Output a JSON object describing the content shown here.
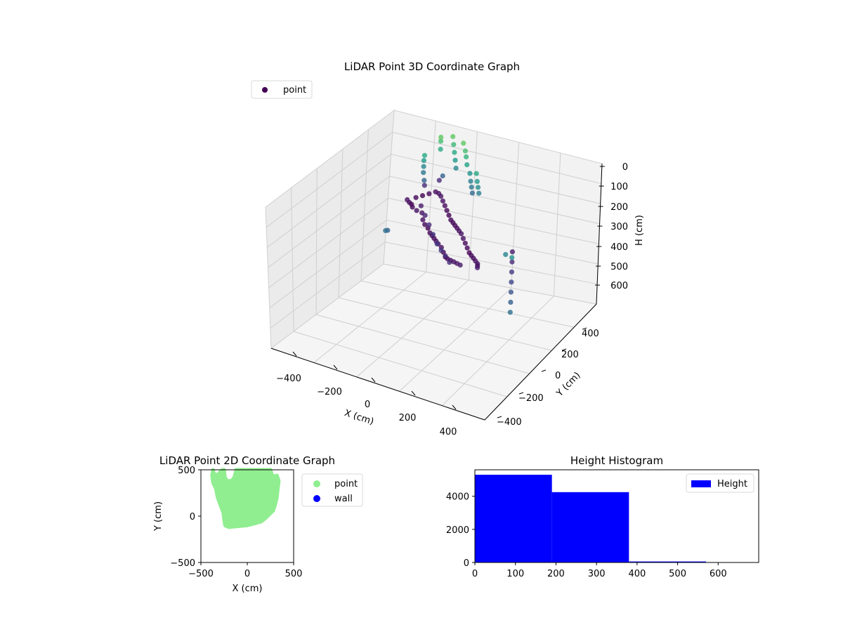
{
  "chart_data": [
    {
      "type": "scatter",
      "projection": "3d",
      "title": "LiDAR Point 3D Coordinate Graph",
      "xlabel": "X (cm)",
      "ylabel": "Y (cm)",
      "zlabel": "H (cm)",
      "xticks": [
        "−400",
        "−200",
        "0",
        "200",
        "400"
      ],
      "yticks": [
        "−400",
        "−200",
        "0",
        "200",
        "400"
      ],
      "zticks": [
        "0",
        "100",
        "200",
        "300",
        "400",
        "500",
        "600"
      ],
      "zaxis_inverted": true,
      "grid": true,
      "legend": {
        "position": "top-left",
        "entries": [
          {
            "label": "point",
            "color": "#440154"
          }
        ]
      },
      "colormap": "viridis",
      "series": [
        {
          "name": "point",
          "points": [
            [
              -200,
              150,
              250
            ],
            [
              -180,
              120,
              240
            ],
            [
              -150,
              100,
              235
            ],
            [
              -120,
              90,
              230
            ],
            [
              -100,
              60,
              240
            ],
            [
              -80,
              40,
              245
            ],
            [
              -60,
              30,
              250
            ],
            [
              -40,
              10,
              255
            ],
            [
              -20,
              -10,
              250
            ],
            [
              0,
              -30,
              245
            ],
            [
              20,
              -50,
              240
            ],
            [
              40,
              -70,
              235
            ],
            [
              60,
              -80,
              240
            ],
            [
              80,
              -100,
              245
            ],
            [
              100,
              -120,
              250
            ],
            [
              120,
              -140,
              240
            ],
            [
              140,
              -150,
              235
            ],
            [
              160,
              -160,
              230
            ],
            [
              180,
              -170,
              225
            ],
            [
              200,
              -180,
              220
            ],
            [
              -220,
              170,
              260
            ],
            [
              -240,
              190,
              265
            ],
            [
              -210,
              210,
              255
            ],
            [
              -190,
              230,
              250
            ],
            [
              -170,
              250,
              245
            ],
            [
              -150,
              270,
              240
            ],
            [
              -130,
              260,
              235
            ],
            [
              -110,
              240,
              230
            ],
            [
              -90,
              220,
              235
            ],
            [
              -70,
              200,
              240
            ],
            [
              -50,
              180,
              245
            ],
            [
              -30,
              160,
              250
            ],
            [
              -10,
              140,
              255
            ],
            [
              10,
              120,
              250
            ],
            [
              30,
              100,
              245
            ],
            [
              50,
              80,
              240
            ],
            [
              70,
              60,
              235
            ],
            [
              90,
              40,
              230
            ],
            [
              110,
              20,
              235
            ],
            [
              130,
              0,
              240
            ],
            [
              150,
              -20,
              245
            ],
            [
              170,
              -40,
              250
            ],
            [
              190,
              -60,
              245
            ],
            [
              210,
              -80,
              240
            ],
            [
              230,
              -100,
              235
            ],
            [
              250,
              -120,
              230
            ],
            [
              260,
              -140,
              225
            ],
            [
              270,
              -160,
              220
            ],
            [
              -100,
              120,
              300
            ],
            [
              -60,
              80,
              310
            ],
            [
              -20,
              40,
              320
            ],
            [
              20,
              0,
              315
            ],
            [
              60,
              -40,
              305
            ],
            [
              100,
              -80,
              300
            ],
            [
              -140,
              160,
              290
            ],
            [
              -180,
              200,
              280
            ],
            [
              -200,
              250,
              150
            ],
            [
              -200,
              250,
              120
            ],
            [
              -200,
              250,
              90
            ],
            [
              -195,
              245,
              60
            ],
            [
              -190,
              240,
              180
            ],
            [
              -185,
              235,
              200
            ],
            [
              -150,
              300,
              200
            ],
            [
              -140,
              310,
              180
            ],
            [
              -160,
              320,
              60
            ],
            [
              -160,
              320,
              20
            ],
            [
              -160,
              320,
              0
            ],
            [
              -120,
              350,
              0
            ],
            [
              -110,
              340,
              30
            ],
            [
              -100,
              330,
              60
            ],
            [
              -90,
              320,
              90
            ],
            [
              -80,
              310,
              120
            ],
            [
              -60,
              330,
              0
            ],
            [
              -40,
              310,
              20
            ],
            [
              -30,
              300,
              40
            ],
            [
              -20,
              290,
              70
            ],
            [
              0,
              280,
              100
            ],
            [
              10,
              270,
              130
            ],
            [
              20,
              260,
              150
            ],
            [
              30,
              250,
              170
            ],
            [
              50,
              240,
              60
            ],
            [
              60,
              230,
              90
            ],
            [
              70,
              220,
              110
            ],
            [
              80,
              210,
              130
            ],
            [
              300,
              100,
              280
            ],
            [
              320,
              60,
              300
            ],
            [
              340,
              20,
              320
            ],
            [
              360,
              -20,
              340
            ],
            [
              380,
              -60,
              360
            ],
            [
              400,
              -100,
              380
            ],
            [
              420,
              -140,
              400
            ],
            [
              -300,
              120,
              400
            ],
            [
              -280,
              100,
              380
            ],
            [
              200,
              300,
              460
            ],
            [
              180,
              280,
              440
            ]
          ]
        }
      ]
    },
    {
      "type": "scatter",
      "title": "LiDAR Point 2D Coordinate Graph",
      "xlabel": "X (cm)",
      "ylabel": "Y (cm)",
      "xlim": [
        -500,
        500
      ],
      "ylim": [
        -500,
        500
      ],
      "xticks": [
        "−500",
        "0",
        "500"
      ],
      "yticks": [
        "−500",
        "0",
        "500"
      ],
      "legend": {
        "position": "outside-right",
        "entries": [
          {
            "label": "point",
            "color": "#90ee90"
          },
          {
            "label": "wall",
            "color": "#0000ff"
          }
        ]
      },
      "series": [
        {
          "name": "point",
          "color": "#90ee90",
          "outline": [
            [
              -370,
              500
            ],
            [
              -360,
              460
            ],
            [
              -320,
              440
            ],
            [
              -300,
              470
            ],
            [
              -270,
              500
            ],
            [
              -250,
              500
            ],
            [
              -240,
              420
            ],
            [
              -220,
              380
            ],
            [
              -170,
              380
            ],
            [
              -140,
              420
            ],
            [
              -120,
              500
            ],
            [
              250,
              500
            ],
            [
              270,
              440
            ],
            [
              300,
              430
            ],
            [
              320,
              440
            ],
            [
              340,
              380
            ],
            [
              330,
              300
            ],
            [
              320,
              200
            ],
            [
              300,
              120
            ],
            [
              280,
              60
            ],
            [
              240,
              20
            ],
            [
              200,
              -20
            ],
            [
              150,
              -60
            ],
            [
              80,
              -80
            ],
            [
              0,
              -100
            ],
            [
              -100,
              -110
            ],
            [
              -200,
              -120
            ],
            [
              -240,
              -100
            ],
            [
              -250,
              -40
            ],
            [
              -260,
              40
            ],
            [
              -290,
              120
            ],
            [
              -320,
              200
            ],
            [
              -340,
              300
            ],
            [
              -370,
              360
            ],
            [
              -380,
              440
            ]
          ]
        },
        {
          "name": "wall",
          "color": "#0000ff",
          "points": []
        }
      ]
    },
    {
      "type": "bar",
      "subtype": "histogram",
      "title": "Height Histogram",
      "xlim": [
        0,
        700
      ],
      "ylim": [
        0,
        5600
      ],
      "xticks": [
        "0",
        "100",
        "200",
        "300",
        "400",
        "500",
        "600"
      ],
      "yticks": [
        "0",
        "2000",
        "4000"
      ],
      "legend": {
        "position": "top-right",
        "entries": [
          {
            "label": "Height",
            "color": "#0000ff"
          }
        ]
      },
      "series": [
        {
          "name": "Height",
          "color": "#0000ff",
          "bins": [
            [
              0,
              190,
              5300
            ],
            [
              190,
              380,
              4250
            ],
            [
              380,
              570,
              60
            ],
            [
              570,
              700,
              0
            ]
          ]
        }
      ]
    }
  ]
}
